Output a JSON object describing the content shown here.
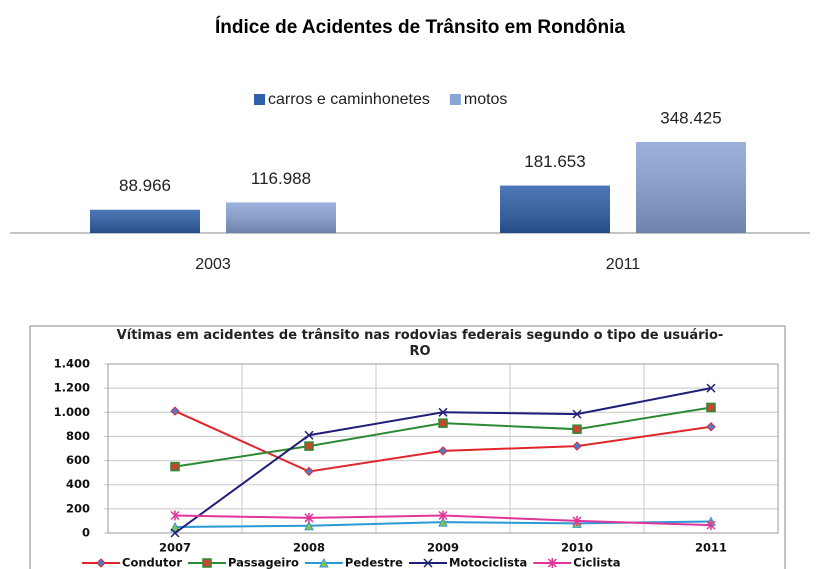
{
  "chart_data": [
    {
      "type": "bar",
      "title": "Índice de Acidentes de Trânsito em Rondônia",
      "categories": [
        "2003",
        "2011"
      ],
      "series": [
        {
          "name": "carros e caminhonetes",
          "color": "#2f5fa8",
          "values": [
            88966,
            181653
          ],
          "value_labels": [
            "88.966",
            "181.653"
          ]
        },
        {
          "name": "motos",
          "color": "#8aa4d6",
          "values": [
            116988,
            348425
          ],
          "value_labels": [
            "116.988",
            "348.425"
          ]
        }
      ],
      "legend": "top"
    },
    {
      "type": "line",
      "title": "Vítimas em acidentes de trânsito nas rodovias federais segundo o tipo de usuário-RO",
      "categories": [
        "2007",
        "2008",
        "2009",
        "2010",
        "2011"
      ],
      "ylim": [
        0,
        1400
      ],
      "yticks": [
        0,
        200,
        400,
        600,
        800,
        {
          "value": 1000,
          "label": "1.000"
        },
        {
          "value": 1200,
          "label": "1.200"
        },
        {
          "value": 1400,
          "label": "1.400"
        }
      ],
      "grid": true,
      "legend": "bottom",
      "series": [
        {
          "name": "Condutor",
          "color": "#e0262b",
          "marker": "diamond",
          "marker_color": "#4a7fd0",
          "values": [
            1010,
            510,
            680,
            720,
            880
          ]
        },
        {
          "name": "Passageiro",
          "color": "#2c8a34",
          "marker": "square",
          "marker_color": "#c9452e",
          "values": [
            550,
            720,
            910,
            860,
            1040
          ]
        },
        {
          "name": "Pedestre",
          "color": "#2a9ad6",
          "marker": "triangle",
          "marker_color": "#8cc63f",
          "values": [
            50,
            60,
            90,
            80,
            95
          ]
        },
        {
          "name": "Motociclista",
          "color": "#1f1f7a",
          "marker": "x",
          "marker_color": "#1f1f7a",
          "values": [
            0,
            810,
            1000,
            985,
            1200
          ]
        },
        {
          "name": "Ciclista",
          "color": "#e0359a",
          "marker": "star",
          "marker_color": "#e0359a",
          "values": [
            145,
            125,
            145,
            100,
            65
          ]
        }
      ]
    }
  ]
}
